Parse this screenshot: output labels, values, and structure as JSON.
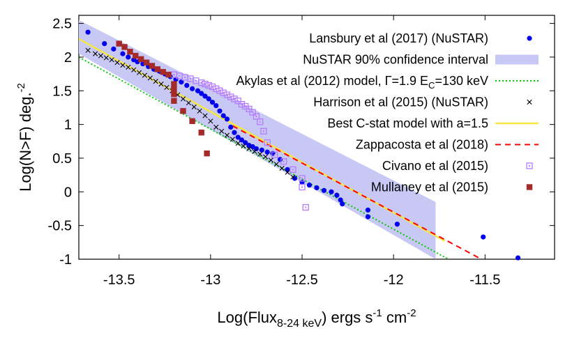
{
  "chart_data": {
    "type": "scatter",
    "title": "",
    "xlabel": {
      "main": "Log(Flux",
      "sub": "8-24 keV",
      "rest": ") ergs s",
      "sup1": "-1",
      "mid": " cm",
      "sup2": "-2"
    },
    "ylabel": {
      "main": "Log(N>F) deg.",
      "sup": "-2"
    },
    "xlim": [
      -13.72,
      -11.12
    ],
    "ylim": [
      -1,
      2.62
    ],
    "xticks": [
      -13.5,
      -13,
      -12.5,
      -12,
      -11.5
    ],
    "xtick_labels": [
      "-13.5",
      "-13",
      "-12.5",
      "-12",
      "-11.5"
    ],
    "yticks": [
      -1,
      -0.5,
      0,
      0.5,
      1,
      1.5,
      2,
      2.5
    ],
    "ytick_labels": [
      "-1",
      "-0.5",
      "0",
      "0.5",
      "1",
      "1.5",
      "2",
      "2.5"
    ],
    "grid": false,
    "legend_position": "top-right",
    "series": [
      {
        "name": "Lansbury et al (2017) (NuSTAR)",
        "kind": "points",
        "marker": "circle",
        "color": "#0000ee",
        "x": [
          -13.67,
          -13.58,
          -13.53,
          -13.48,
          -13.45,
          -13.42,
          -13.4,
          -13.37,
          -13.34,
          -13.31,
          -13.28,
          -13.25,
          -13.22,
          -13.19,
          -13.16,
          -13.13,
          -13.1,
          -13.07,
          -13.05,
          -13.03,
          -13.01,
          -12.99,
          -12.97,
          -12.95,
          -12.93,
          -12.91,
          -12.89,
          -12.87,
          -12.85,
          -12.83,
          -12.81,
          -12.79,
          -12.77,
          -12.75,
          -12.72,
          -12.69,
          -12.66,
          -12.62,
          -12.58,
          -12.54,
          -12.5,
          -12.46,
          -12.42,
          -12.38,
          -12.34,
          -12.31,
          -12.29,
          -12.28,
          -12.14,
          -12.14,
          -11.98,
          -11.51,
          -11.32
        ],
        "y": [
          2.37,
          2.2,
          2.12,
          2.05,
          2.0,
          1.96,
          1.93,
          1.9,
          1.86,
          1.82,
          1.79,
          1.75,
          1.71,
          1.67,
          1.63,
          1.58,
          1.53,
          1.5,
          1.46,
          1.42,
          1.38,
          1.33,
          1.28,
          1.2,
          1.13,
          1.08,
          0.96,
          0.88,
          0.81,
          0.77,
          0.73,
          0.69,
          0.67,
          0.64,
          0.62,
          0.59,
          0.57,
          0.48,
          0.33,
          0.2,
          0.14,
          0.1,
          0.06,
          0.02,
          0.0,
          -0.05,
          -0.12,
          -0.18,
          -0.27,
          -0.37,
          -0.48,
          -0.67,
          -0.98
        ]
      },
      {
        "name": "NuSTAR 90% confidence interval",
        "kind": "band",
        "color": "#c8c8f5",
        "x": [
          -13.72,
          -11.77
        ],
        "upper": [
          2.55,
          -0.15
        ],
        "lower": [
          2.05,
          -1.0
        ]
      },
      {
        "name": "Akylas et al (2012) model, Γ=1.9 E",
        "name_sub": "C",
        "name_rest": "=130 keV",
        "kind": "line",
        "style": "dotted",
        "color": "#00cc00",
        "x": [
          -13.72,
          -11.7
        ],
        "y": [
          2.0,
          -1.0
        ]
      },
      {
        "name": "Harrison et al (2015) (NuSTAR)",
        "kind": "points",
        "marker": "x",
        "color": "#000000",
        "x": [
          -13.67,
          -13.63,
          -13.6,
          -13.57,
          -13.54,
          -13.51,
          -13.48,
          -13.45,
          -13.42,
          -13.39,
          -13.36,
          -13.33,
          -13.3,
          -13.27,
          -13.24,
          -13.21,
          -13.18,
          -13.15,
          -13.12,
          -13.09,
          -13.06,
          -13.03,
          -13.0,
          -12.97,
          -12.94,
          -12.91,
          -12.88,
          -12.85,
          -12.82,
          -12.79,
          -12.76,
          -12.73,
          -12.7,
          -12.67,
          -12.64,
          -12.61,
          -12.58,
          -12.55
        ],
        "y": [
          2.1,
          2.05,
          2.02,
          1.99,
          1.96,
          1.92,
          1.88,
          1.85,
          1.81,
          1.77,
          1.73,
          1.69,
          1.64,
          1.6,
          1.55,
          1.5,
          1.44,
          1.38,
          1.32,
          1.26,
          1.2,
          1.13,
          1.05,
          0.96,
          0.9,
          0.84,
          0.78,
          0.72,
          0.68,
          0.64,
          0.6,
          0.56,
          0.52,
          0.47,
          0.41,
          0.35,
          0.29,
          0.22
        ]
      },
      {
        "name": "Best C-stat model with a=1.5",
        "kind": "line",
        "style": "solid",
        "color": "#f5e642",
        "x": [
          -13.72,
          -11.72
        ],
        "y": [
          2.27,
          -0.73
        ]
      },
      {
        "name": "Zappacosta et al (2018)",
        "kind": "line",
        "style": "dashed",
        "color": "#ff0000",
        "x": [
          -12.88,
          -11.52
        ],
        "y": [
          0.98,
          -1.0
        ]
      },
      {
        "name": "Civano et al (2015)",
        "kind": "points",
        "marker": "open-square",
        "color": "#b57bff",
        "x": [
          -13.2,
          -13.17,
          -13.14,
          -13.11,
          -13.08,
          -13.05,
          -13.03,
          -13.01,
          -12.99,
          -12.97,
          -12.95,
          -12.93,
          -12.91,
          -12.89,
          -12.87,
          -12.85,
          -12.83,
          -12.81,
          -12.79,
          -12.77,
          -12.75,
          -12.73,
          -12.71,
          -12.69,
          -12.65,
          -12.6,
          -12.55,
          -12.5,
          -12.5,
          -12.48
        ],
        "y": [
          1.74,
          1.72,
          1.7,
          1.68,
          1.65,
          1.62,
          1.6,
          1.58,
          1.56,
          1.53,
          1.5,
          1.47,
          1.44,
          1.41,
          1.38,
          1.35,
          1.3,
          1.27,
          1.23,
          1.18,
          1.12,
          1.04,
          0.9,
          0.73,
          0.55,
          0.45,
          0.33,
          0.2,
          0.07,
          -0.23
        ]
      },
      {
        "name": "Mullaney et al (2015)",
        "kind": "points",
        "marker": "filled-square",
        "color": "#a52a2a",
        "x": [
          -13.5,
          -13.47,
          -13.44,
          -13.41,
          -13.38,
          -13.35,
          -13.32,
          -13.29,
          -13.26,
          -13.23,
          -13.2,
          -13.2,
          -13.2,
          -13.2,
          -13.15,
          -13.1,
          -13.05,
          -13.02
        ],
        "y": [
          2.2,
          2.15,
          2.08,
          2.02,
          1.97,
          1.92,
          1.87,
          1.82,
          1.78,
          1.74,
          1.6,
          1.52,
          1.45,
          1.35,
          1.2,
          1.05,
          0.88,
          0.57
        ]
      }
    ]
  }
}
